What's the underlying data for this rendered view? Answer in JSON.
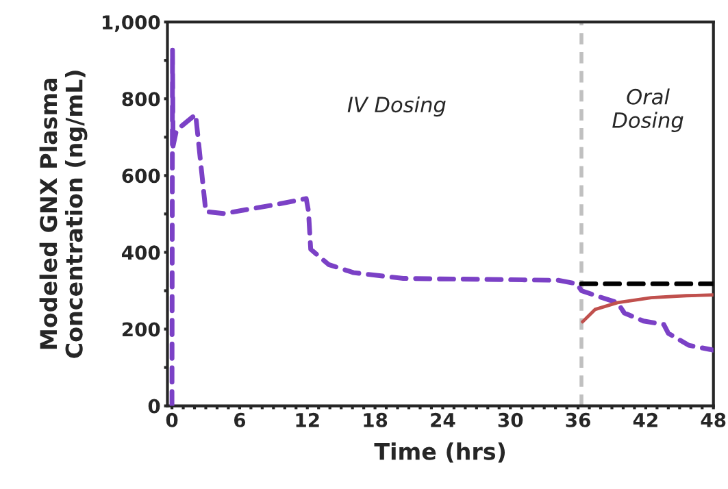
{
  "chart_data": {
    "type": "line",
    "xlabel": "Time (hrs)",
    "ylabel": "Modeled GNX Plasma\nConcentration (ng/mL)",
    "annotations": [
      "IV Dosing",
      "Oral\nDosing"
    ],
    "xlim": [
      -0.4,
      48
    ],
    "ylim": [
      0,
      1000
    ],
    "xticks": [
      0,
      {
        "value": 1,
        "label": null
      },
      {
        "value": 2,
        "label": null
      },
      {
        "value": 3,
        "label": null
      },
      {
        "value": 4,
        "label": null
      },
      {
        "value": 5,
        "label": null
      },
      6,
      {
        "value": 7,
        "label": null
      },
      {
        "value": 8,
        "label": null
      },
      {
        "value": 9,
        "label": null
      },
      {
        "value": 10,
        "label": null
      },
      {
        "value": 11,
        "label": null
      },
      12,
      {
        "value": 13,
        "label": null
      },
      {
        "value": 14,
        "label": null
      },
      {
        "value": 15,
        "label": null
      },
      {
        "value": 16,
        "label": null
      },
      {
        "value": 17,
        "label": null
      },
      18,
      {
        "value": 19,
        "label": null
      },
      {
        "value": 20,
        "label": null
      },
      {
        "value": 21,
        "label": null
      },
      {
        "value": 22,
        "label": null
      },
      {
        "value": 23,
        "label": null
      },
      24,
      {
        "value": 25,
        "label": null
      },
      {
        "value": 26,
        "label": null
      },
      {
        "value": 27,
        "label": null
      },
      {
        "value": 28,
        "label": null
      },
      {
        "value": 29,
        "label": null
      },
      30,
      {
        "value": 31,
        "label": null
      },
      {
        "value": 32,
        "label": null
      },
      {
        "value": 33,
        "label": null
      },
      {
        "value": 34,
        "label": null
      },
      {
        "value": 35,
        "label": null
      },
      36,
      {
        "value": 37,
        "label": null
      },
      {
        "value": 38,
        "label": null
      },
      {
        "value": 39,
        "label": null
      },
      {
        "value": 40,
        "label": null
      },
      {
        "value": 41,
        "label": null
      },
      42,
      {
        "value": 43,
        "label": null
      },
      {
        "value": 44,
        "label": null
      },
      {
        "value": 45,
        "label": null
      },
      {
        "value": 46,
        "label": null
      },
      {
        "value": 47,
        "label": null
      },
      48
    ],
    "yticks": [
      {
        "value": 0,
        "label": "0"
      },
      {
        "value": 100,
        "label": null
      },
      {
        "value": 200,
        "label": "200"
      },
      {
        "value": 300,
        "label": null
      },
      {
        "value": 400,
        "label": "400"
      },
      {
        "value": 500,
        "label": null
      },
      {
        "value": 600,
        "label": "600"
      },
      {
        "value": 700,
        "label": null
      },
      {
        "value": 800,
        "label": "800"
      },
      {
        "value": 900,
        "label": null
      },
      {
        "value": 1000,
        "label": "1,000"
      }
    ],
    "grid": false,
    "legend": false,
    "marker": "none",
    "series": [
      {
        "color": "#7b41c6",
        "line_style": "dashed",
        "x": [
          0,
          0.05,
          0.1,
          0.4,
          2.1,
          3.0,
          4.6,
          9.5,
          11.9,
          12.1,
          12.3,
          13.9,
          16.1,
          20.5,
          29.2,
          34.3,
          35.9,
          36.3,
          38.1,
          39.5,
          40.1,
          41.8,
          43.6,
          44.0,
          45.8,
          47.7,
          48
        ],
        "values": [
          0,
          928,
          677,
          718,
          759,
          506,
          501,
          526,
          540,
          508,
          408,
          368,
          347,
          332,
          329,
          327,
          318,
          300,
          282,
          269,
          242,
          221,
          212,
          189,
          158,
          147,
          145
        ]
      },
      {
        "color": "#c0504d",
        "line_style": "solid",
        "x": [
          36.4,
          37.5,
          39.5,
          42.5,
          45.6,
          48
        ],
        "values": [
          219,
          251,
          269,
          282,
          287,
          289
        ]
      },
      {
        "color": "#000000",
        "line_style": "dashed",
        "x": [
          36.3,
          48
        ],
        "values": [
          318,
          318
        ]
      }
    ],
    "ref_lines": [
      {
        "axis": "x",
        "value": 36.3,
        "color": "#c0c0c0",
        "line_style": "dashed"
      }
    ]
  }
}
